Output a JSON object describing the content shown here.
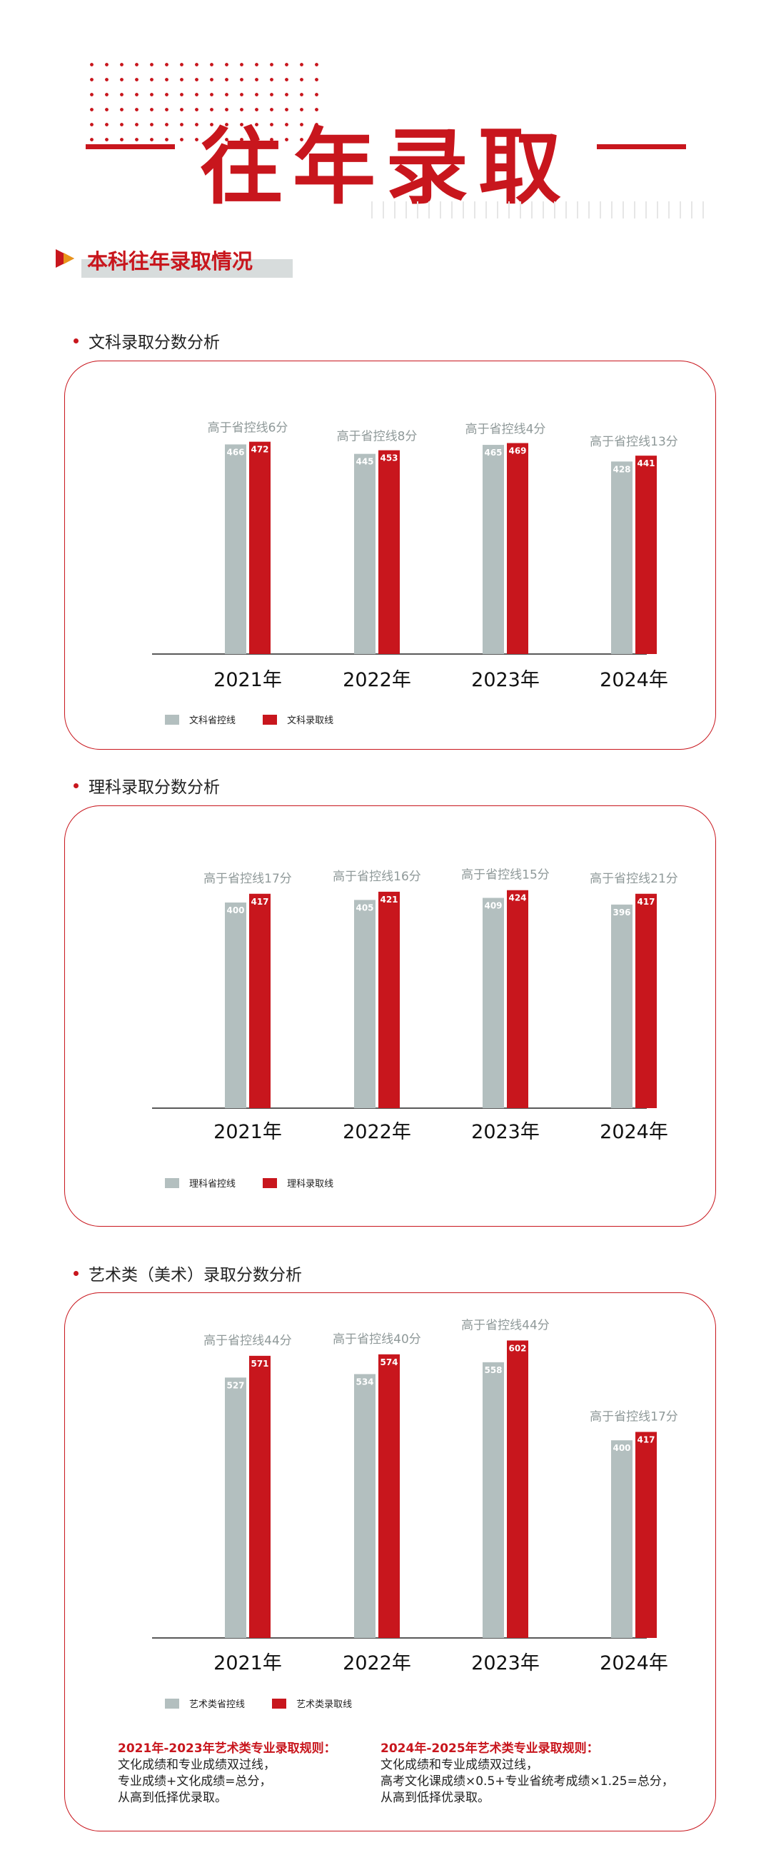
{
  "header": {
    "title": "往年录取"
  },
  "section": {
    "label": "本科往年录取情况"
  },
  "colors": {
    "accent": "#c8161d",
    "province_bar": "#b3bfbf",
    "admission_bar": "#c8161d"
  },
  "charts": [
    {
      "title": "文科录取分数分析",
      "legend": [
        "文科省控线",
        "文科录取线"
      ],
      "chart_data": {
        "type": "bar",
        "categories": [
          "2021年",
          "2022年",
          "2023年",
          "2024年"
        ],
        "series": [
          {
            "name": "文科省控线",
            "values": [
              466,
              445,
              465,
              428
            ]
          },
          {
            "name": "文科录取线",
            "values": [
              472,
              453,
              469,
              441
            ]
          }
        ],
        "annotations": [
          "高于省控线6分",
          "高于省控线8分",
          "高于省控线4分",
          "高于省控线13分"
        ]
      }
    },
    {
      "title": "理科录取分数分析",
      "legend": [
        "理科省控线",
        "理科录取线"
      ],
      "chart_data": {
        "type": "bar",
        "categories": [
          "2021年",
          "2022年",
          "2023年",
          "2024年"
        ],
        "series": [
          {
            "name": "理科省控线",
            "values": [
              400,
              405,
              409,
              396
            ]
          },
          {
            "name": "理科录取线",
            "values": [
              417,
              421,
              424,
              417
            ]
          }
        ],
        "annotations": [
          "高于省控线17分",
          "高于省控线16分",
          "高于省控线15分",
          "高于省控线21分"
        ]
      }
    },
    {
      "title": "艺术类（美术）录取分数分析",
      "legend": [
        "艺术类省控线",
        "艺术类录取线"
      ],
      "chart_data": {
        "type": "bar",
        "categories": [
          "2021年",
          "2022年",
          "2023年",
          "2024年"
        ],
        "series": [
          {
            "name": "艺术类省控线",
            "values": [
              527,
              534,
              558,
              400
            ]
          },
          {
            "name": "艺术类录取线",
            "values": [
              571,
              574,
              602,
              417
            ]
          }
        ],
        "annotations": [
          "高于省控线44分",
          "高于省控线40分",
          "高于省控线44分",
          "高于省控线17分"
        ]
      }
    }
  ],
  "rules": [
    {
      "title": "2021年-2023年艺术类专业录取规则：",
      "lines": [
        "文化成绩和专业成绩双过线，",
        "专业成绩+文化成绩=总分，",
        "从高到低择优录取。"
      ]
    },
    {
      "title": "2024年-2025年艺术类专业录取规则：",
      "lines": [
        "文化成绩和专业成绩双过线，",
        "高考文化课成绩×0.5+专业省统考成绩×1.25=总分，",
        "从高到低择优录取。"
      ]
    }
  ]
}
